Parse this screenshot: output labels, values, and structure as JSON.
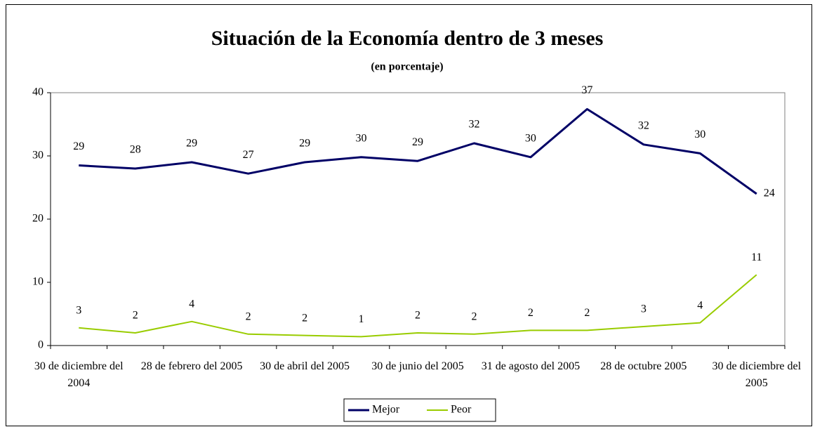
{
  "chart_data": {
    "type": "line",
    "title": "Situación de la Economía dentro de 3 meses",
    "subtitle": "(en porcentaje)",
    "categories": [
      "30 de diciembre del 2004",
      null,
      "28 de febrero del 2005",
      null,
      "30 de abril del 2005",
      null,
      "30 de junio del 2005",
      null,
      "31 de agosto del 2005",
      null,
      "28 de octubre 2005",
      null,
      "30 de diciembre del 2005"
    ],
    "series": [
      {
        "name": "Mejor",
        "color": "#000066",
        "values": [
          28.5,
          28,
          29,
          27.2,
          29,
          29.8,
          29.2,
          32,
          29.8,
          37.4,
          31.8,
          30.4,
          24
        ],
        "value_labels": [
          "29",
          "28",
          "29",
          "27",
          "29",
          "30",
          "29",
          "32",
          "30",
          "37",
          "32",
          "30",
          "24"
        ]
      },
      {
        "name": "Peor",
        "color": "#99cc00",
        "values": [
          2.8,
          2,
          3.8,
          1.8,
          1.6,
          1.4,
          2,
          1.8,
          2.4,
          2.4,
          3,
          3.6,
          11.2
        ],
        "value_labels": [
          "3",
          "2",
          "4",
          "2",
          "2",
          "1",
          "2",
          "2",
          "2",
          "2",
          "3",
          "4",
          "11"
        ]
      }
    ],
    "ylim": [
      0,
      40
    ],
    "yticks": [
      0,
      10,
      20,
      30,
      40
    ],
    "grid": false,
    "legend": "bottom"
  }
}
